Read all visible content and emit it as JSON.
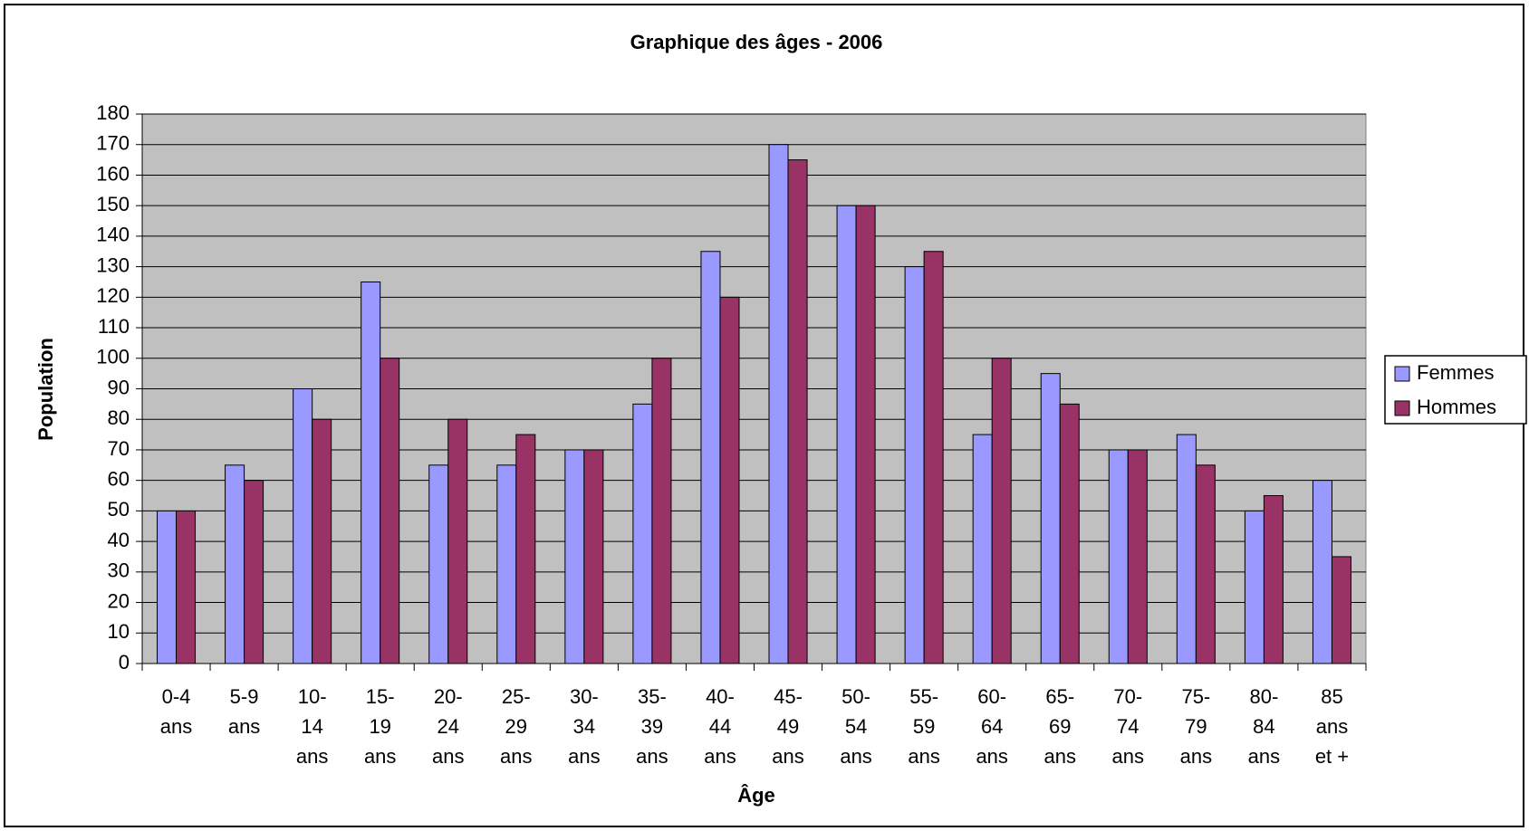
{
  "chart_data": {
    "type": "bar",
    "title": "Graphique des âges - 2006",
    "x_label": "Âge",
    "y_label": "Population",
    "categories": [
      "0-4 ans",
      "5-9 ans",
      "10-14 ans",
      "15-19 ans",
      "20-24 ans",
      "25-29 ans",
      "30-34 ans",
      "35-39 ans",
      "40-44 ans",
      "45-49 ans",
      "50-54 ans",
      "55-59 ans",
      "60-64 ans",
      "65-69 ans",
      "70-74 ans",
      "75-79 ans",
      "80-84 ans",
      "85 ans et +"
    ],
    "series": [
      {
        "name": "Femmes",
        "color": "#9999ff",
        "values": [
          50,
          65,
          90,
          125,
          65,
          65,
          70,
          85,
          135,
          170,
          150,
          130,
          75,
          95,
          70,
          75,
          50,
          60
        ]
      },
      {
        "name": "Hommes",
        "color": "#993366",
        "values": [
          50,
          60,
          80,
          100,
          80,
          75,
          70,
          100,
          120,
          165,
          150,
          135,
          100,
          85,
          70,
          65,
          55,
          35
        ]
      }
    ],
    "ylim": [
      0,
      180
    ],
    "yticks": [
      0,
      10,
      20,
      30,
      40,
      50,
      60,
      70,
      80,
      90,
      100,
      110,
      120,
      130,
      140,
      150,
      160,
      170,
      180
    ],
    "grid": true,
    "legend": "right",
    "plot_background": "#c0c0c0"
  }
}
